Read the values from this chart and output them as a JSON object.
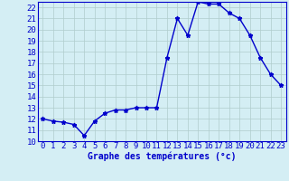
{
  "hours": [
    0,
    1,
    2,
    3,
    4,
    5,
    6,
    7,
    8,
    9,
    10,
    11,
    12,
    13,
    14,
    15,
    16,
    17,
    18,
    19,
    20,
    21,
    22,
    23
  ],
  "temps": [
    12.0,
    11.8,
    11.7,
    11.5,
    10.5,
    11.8,
    12.5,
    12.8,
    12.8,
    13.0,
    13.0,
    13.0,
    17.5,
    21.0,
    19.5,
    22.5,
    22.3,
    22.3,
    21.5,
    21.0,
    19.5,
    17.5,
    16.0,
    15.0
  ],
  "line_color": "#0000cc",
  "marker": "*",
  "marker_color": "#0000cc",
  "bg_color": "#d4eef4",
  "grid_color": "#b0cccc",
  "axis_color": "#0000cc",
  "xlabel": "Graphe des températures (°c)",
  "xlim": [
    -0.5,
    23.5
  ],
  "ylim": [
    10,
    22.5
  ],
  "yticks": [
    10,
    11,
    12,
    13,
    14,
    15,
    16,
    17,
    18,
    19,
    20,
    21,
    22
  ],
  "xticks": [
    0,
    1,
    2,
    3,
    4,
    5,
    6,
    7,
    8,
    9,
    10,
    11,
    12,
    13,
    14,
    15,
    16,
    17,
    18,
    19,
    20,
    21,
    22,
    23
  ],
  "xlabel_fontsize": 7,
  "tick_fontsize": 6.5,
  "line_width": 1.0,
  "marker_size": 3.5
}
